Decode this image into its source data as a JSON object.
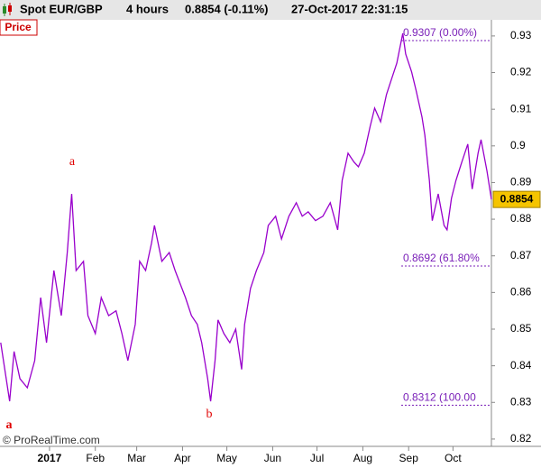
{
  "chart_data": {
    "type": "line",
    "header": {
      "symbol": "Spot EUR/GBP",
      "timeframe": "4 hours",
      "quote": "0.8854 (-0.11%)",
      "timestamp": "27-Oct-2017 22:31:15"
    },
    "panel_label": "Price",
    "copyright": "© ProRealTime.com",
    "color": "#9900cc",
    "x": [
      -33,
      -27,
      -24,
      -20,
      -15,
      -10,
      -6,
      -2,
      3,
      8,
      12,
      15,
      18,
      23,
      26,
      31,
      35,
      40,
      45,
      49,
      53,
      58,
      61,
      65,
      69,
      71,
      76,
      81,
      85,
      92,
      96,
      100,
      103,
      107,
      109,
      112,
      114,
      118,
      122,
      126,
      130,
      132,
      136,
      140,
      145,
      148,
      153,
      157,
      162,
      167,
      171,
      175,
      180,
      185,
      190,
      195,
      198,
      202,
      206,
      209,
      213,
      217,
      220,
      224,
      228,
      231,
      235,
      239,
      241,
      245,
      248,
      252,
      254,
      257,
      259,
      263,
      267,
      269,
      272,
      275,
      279,
      283,
      286,
      290,
      292,
      296,
      299
    ],
    "values": [
      0.8463,
      0.8303,
      0.8439,
      0.8365,
      0.834,
      0.8414,
      0.8586,
      0.8463,
      0.866,
      0.8537,
      0.8709,
      0.8869,
      0.866,
      0.8685,
      0.8537,
      0.8488,
      0.8586,
      0.8537,
      0.855,
      0.8488,
      0.8414,
      0.8513,
      0.8685,
      0.866,
      0.8734,
      0.8783,
      0.8685,
      0.8709,
      0.866,
      0.8586,
      0.8537,
      0.8513,
      0.8463,
      0.8365,
      0.8303,
      0.8414,
      0.8525,
      0.8488,
      0.8463,
      0.85,
      0.839,
      0.8513,
      0.8611,
      0.866,
      0.8709,
      0.8783,
      0.8808,
      0.8746,
      0.8808,
      0.8845,
      0.8808,
      0.882,
      0.8796,
      0.8808,
      0.8845,
      0.8771,
      0.8906,
      0.898,
      0.8956,
      0.8943,
      0.898,
      0.9054,
      0.9103,
      0.9066,
      0.914,
      0.9177,
      0.9226,
      0.9307,
      0.9251,
      0.9202,
      0.9152,
      0.9079,
      0.9029,
      0.8906,
      0.8796,
      0.8869,
      0.8783,
      0.8771,
      0.8857,
      0.8906,
      0.8956,
      0.9005,
      0.8882,
      0.898,
      0.9017,
      0.8931,
      0.8854
    ],
    "xlim": [
      -33.5,
      299
    ],
    "xticks": [
      {
        "value": 0,
        "label": "2017"
      },
      {
        "value": 31,
        "label": "Feb"
      },
      {
        "value": 59,
        "label": "Mar"
      },
      {
        "value": 90,
        "label": "Apr"
      },
      {
        "value": 120,
        "label": "May"
      },
      {
        "value": 151,
        "label": "Jun"
      },
      {
        "value": 181,
        "label": "Jul"
      },
      {
        "value": 212,
        "label": "Aug"
      },
      {
        "value": 243,
        "label": "Sep"
      },
      {
        "value": 273,
        "label": "Oct"
      }
    ],
    "ylim": [
      0.8185,
      0.9344
    ],
    "yticks": [
      0.82,
      0.83,
      0.84,
      0.85,
      0.86,
      0.87,
      0.88,
      0.89,
      0.9,
      0.91,
      0.92,
      0.93
    ],
    "last_price": 0.8854,
    "fib_levels": [
      {
        "value": 0.9307,
        "label": "0.9307 (0.00%)"
      },
      {
        "value": 0.8692,
        "label": "0.8692 (61.80%"
      },
      {
        "value": 0.8312,
        "label": "0.8312 (100.00"
      }
    ],
    "wave_labels": [
      "a",
      "b",
      "a"
    ]
  }
}
